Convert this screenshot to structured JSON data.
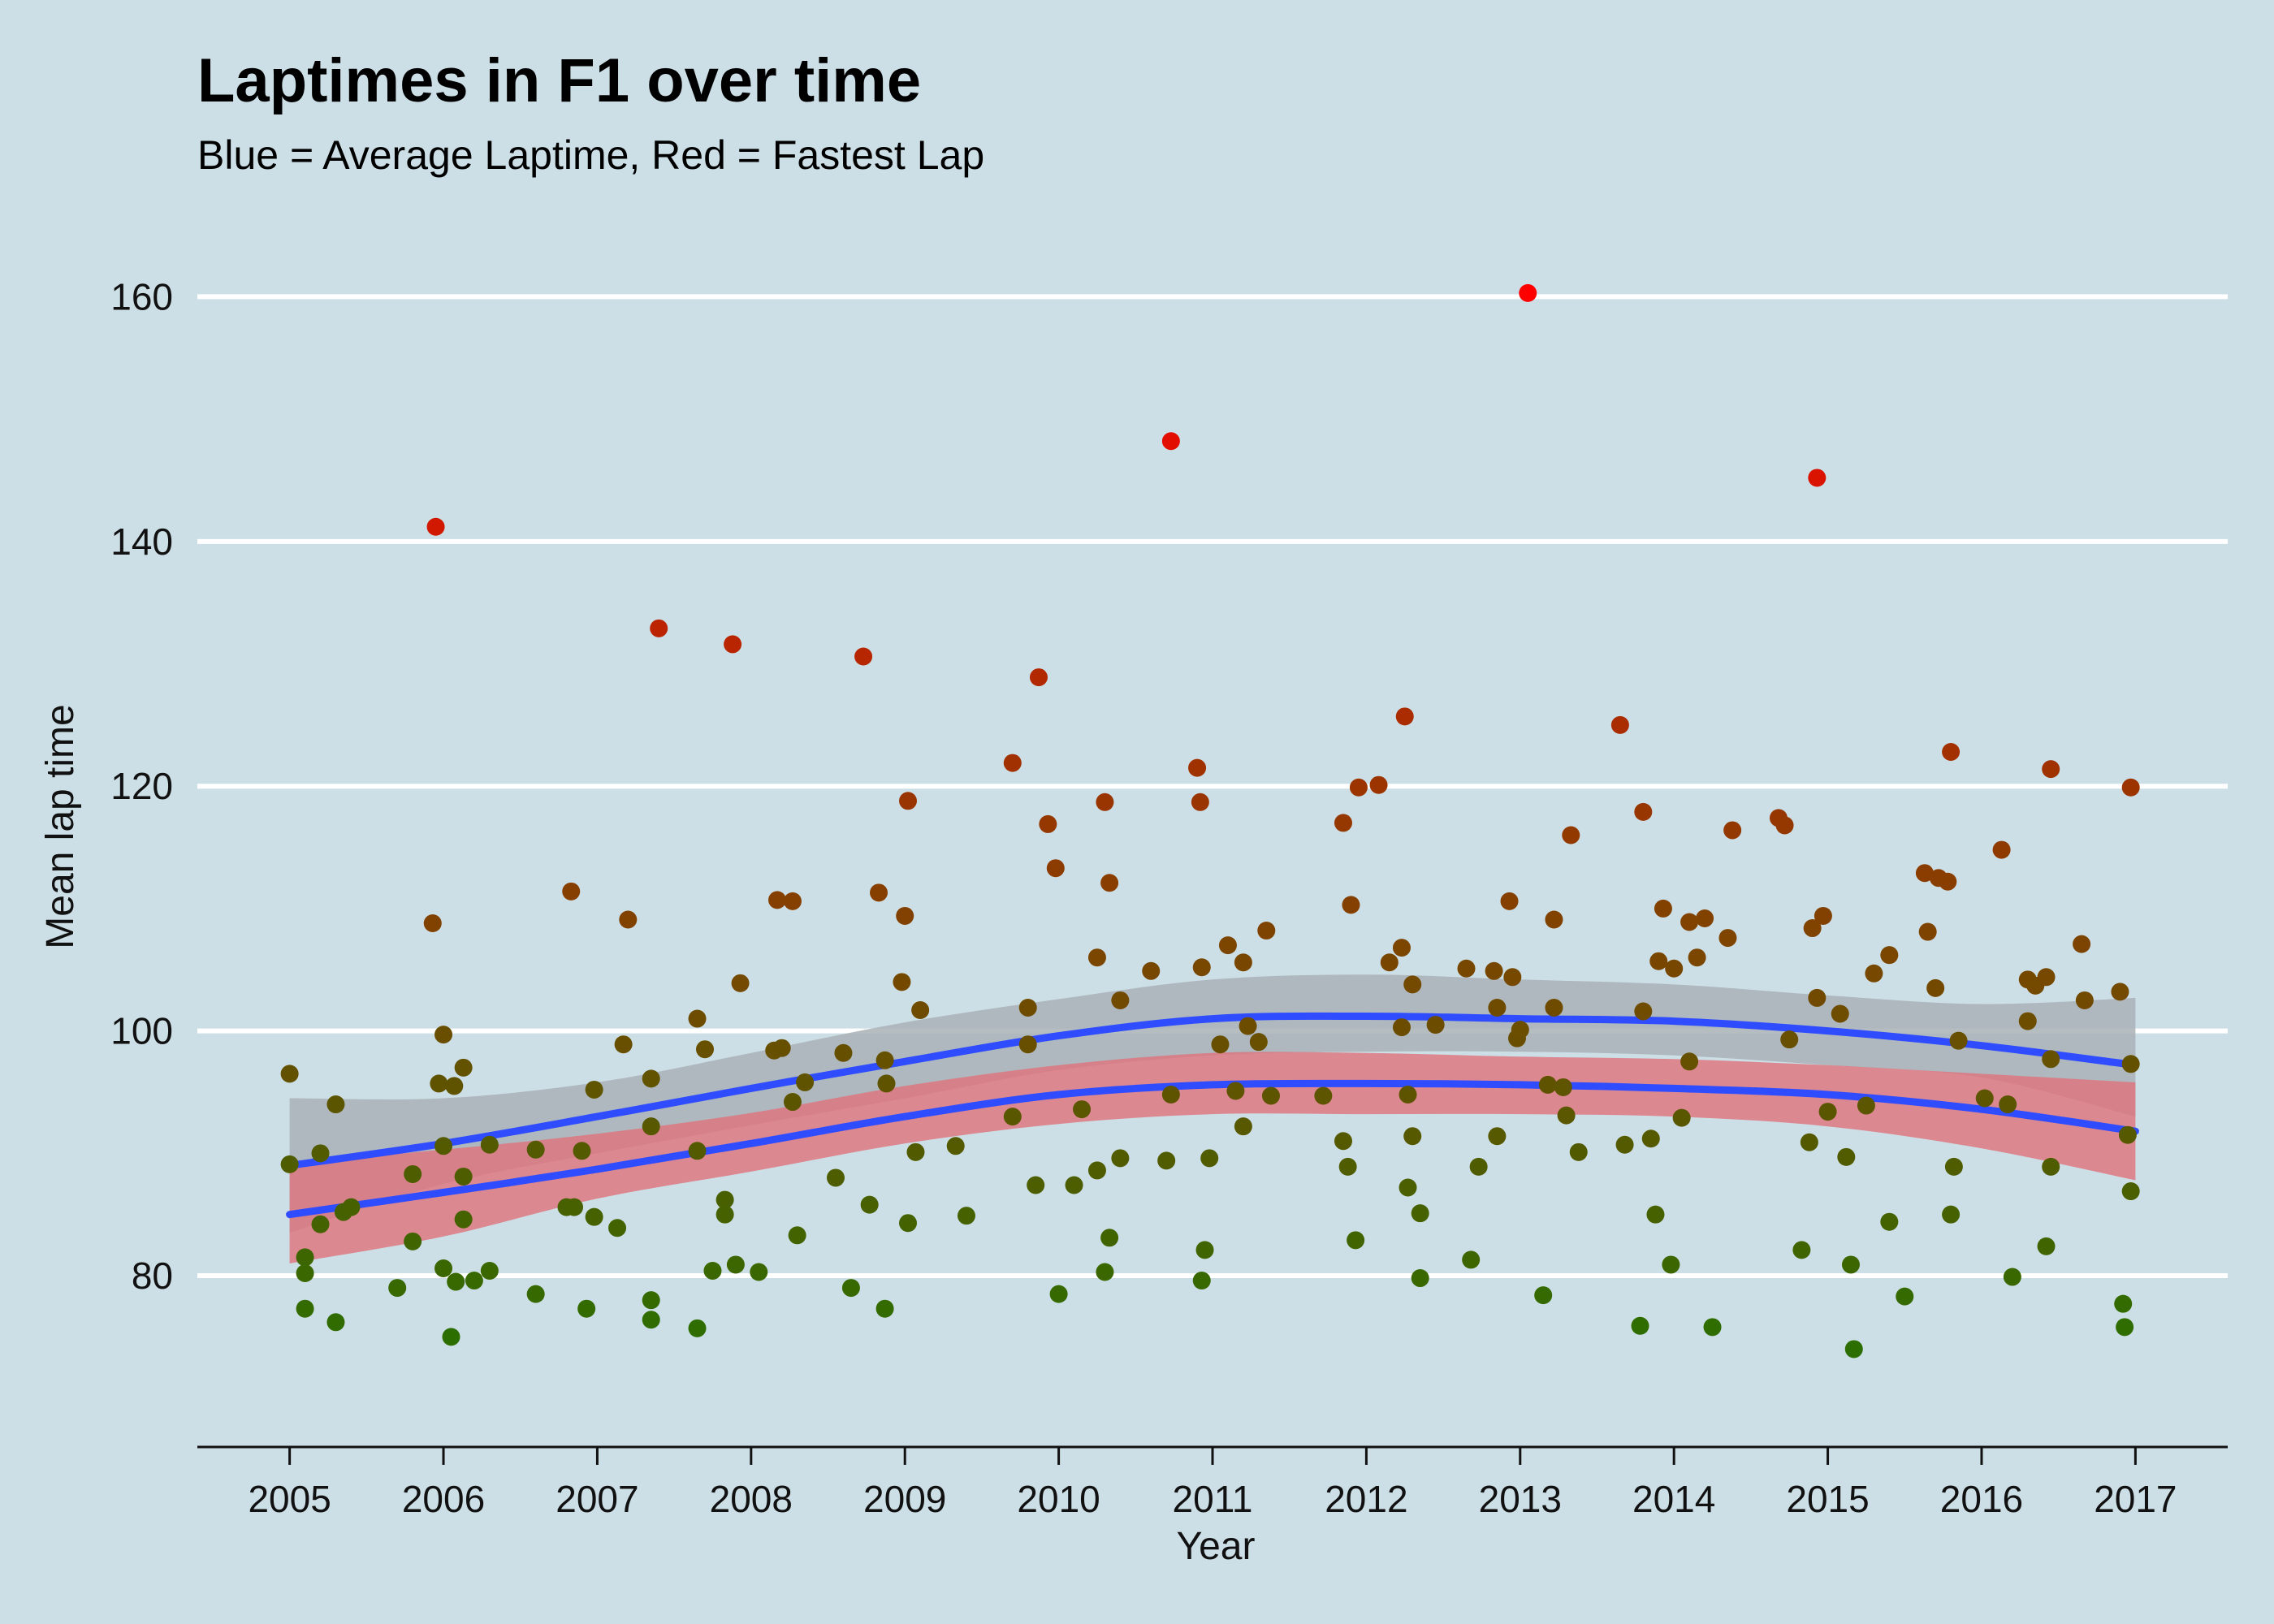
{
  "chart_data": {
    "type": "scatter",
    "title": "Laptimes in F1 over time",
    "subtitle": "Blue = Average Laptime, Red = Fastest Lap",
    "xlabel": "Year",
    "ylabel": "Mean lap time",
    "xlim": [
      2004.4,
      2017.6
    ],
    "ylim": [
      66,
      166
    ],
    "x_ticks": [
      "2005",
      "2006",
      "2007",
      "2008",
      "2009",
      "2010",
      "2011",
      "2012",
      "2013",
      "2014",
      "2015",
      "2016",
      "2017"
    ],
    "y_ticks": [
      "80",
      "100",
      "120",
      "140",
      "160"
    ],
    "grid": "horizontal major gridlines",
    "colors": {
      "background": "#cddfe6",
      "grid": "#ffffff",
      "smooth_line": "#2f4dff",
      "band_average": "#a9b1b6",
      "band_fastest": "#e0727c"
    },
    "points": [
      [
        2005.0,
        96.5
      ],
      [
        2005.0,
        89.1
      ],
      [
        2005.1,
        81.5
      ],
      [
        2005.1,
        77.3
      ],
      [
        2005.1,
        80.2
      ],
      [
        2005.2,
        84.2
      ],
      [
        2005.2,
        90.0
      ],
      [
        2005.3,
        94.0
      ],
      [
        2005.3,
        76.2
      ],
      [
        2005.35,
        85.2
      ],
      [
        2005.4,
        85.6
      ],
      [
        2005.7,
        79.0
      ],
      [
        2005.8,
        88.3
      ],
      [
        2005.8,
        82.8
      ],
      [
        2005.95,
        141.2
      ],
      [
        2005.93,
        108.8
      ],
      [
        2005.97,
        95.7
      ],
      [
        2006.0,
        90.6
      ],
      [
        2006.0,
        99.7
      ],
      [
        2006.0,
        80.6
      ],
      [
        2006.05,
        75.0
      ],
      [
        2006.07,
        95.5
      ],
      [
        2006.08,
        79.5
      ],
      [
        2006.13,
        97.0
      ],
      [
        2006.13,
        88.1
      ],
      [
        2006.13,
        84.6
      ],
      [
        2006.2,
        79.6
      ],
      [
        2006.3,
        90.7
      ],
      [
        2006.3,
        80.4
      ],
      [
        2006.6,
        90.3
      ],
      [
        2006.6,
        78.5
      ],
      [
        2006.8,
        85.6
      ],
      [
        2006.83,
        111.4
      ],
      [
        2006.85,
        85.6
      ],
      [
        2006.9,
        90.2
      ],
      [
        2006.93,
        77.3
      ],
      [
        2006.98,
        95.2
      ],
      [
        2006.98,
        84.8
      ],
      [
        2007.13,
        83.9
      ],
      [
        2007.17,
        98.9
      ],
      [
        2007.2,
        109.1
      ],
      [
        2007.35,
        96.1
      ],
      [
        2007.35,
        92.2
      ],
      [
        2007.35,
        78.0
      ],
      [
        2007.35,
        76.4
      ],
      [
        2007.4,
        132.9
      ],
      [
        2007.65,
        101.0
      ],
      [
        2007.65,
        90.2
      ],
      [
        2007.65,
        75.7
      ],
      [
        2007.7,
        98.5
      ],
      [
        2007.75,
        80.4
      ],
      [
        2007.83,
        86.2
      ],
      [
        2007.83,
        85.0
      ],
      [
        2007.88,
        131.6
      ],
      [
        2007.9,
        80.9
      ],
      [
        2007.93,
        103.9
      ],
      [
        2008.05,
        80.3
      ],
      [
        2008.15,
        98.4
      ],
      [
        2008.17,
        110.7
      ],
      [
        2008.2,
        98.6
      ],
      [
        2008.27,
        110.6
      ],
      [
        2008.27,
        94.2
      ],
      [
        2008.3,
        83.3
      ],
      [
        2008.35,
        95.8
      ],
      [
        2008.55,
        88.0
      ],
      [
        2008.6,
        98.2
      ],
      [
        2008.65,
        79.0
      ],
      [
        2008.73,
        130.6
      ],
      [
        2008.77,
        85.8
      ],
      [
        2008.83,
        111.3
      ],
      [
        2008.87,
        97.6
      ],
      [
        2008.87,
        77.3
      ],
      [
        2008.88,
        95.7
      ],
      [
        2008.98,
        104.0
      ],
      [
        2009.0,
        109.4
      ],
      [
        2009.02,
        118.8
      ],
      [
        2009.02,
        84.3
      ],
      [
        2009.07,
        90.1
      ],
      [
        2009.1,
        101.7
      ],
      [
        2009.33,
        90.6
      ],
      [
        2009.4,
        84.9
      ],
      [
        2009.7,
        121.9
      ],
      [
        2009.7,
        93.0
      ],
      [
        2009.8,
        98.9
      ],
      [
        2009.8,
        101.9
      ],
      [
        2009.85,
        87.4
      ],
      [
        2009.87,
        128.9
      ],
      [
        2009.93,
        116.9
      ],
      [
        2009.98,
        113.3
      ],
      [
        2010.0,
        78.5
      ],
      [
        2010.1,
        87.4
      ],
      [
        2010.15,
        93.6
      ],
      [
        2010.25,
        88.6
      ],
      [
        2010.25,
        106.0
      ],
      [
        2010.3,
        118.7
      ],
      [
        2010.3,
        80.3
      ],
      [
        2010.33,
        112.1
      ],
      [
        2010.33,
        83.1
      ],
      [
        2010.4,
        102.5
      ],
      [
        2010.4,
        89.6
      ],
      [
        2010.6,
        104.9
      ],
      [
        2010.7,
        89.4
      ],
      [
        2010.73,
        148.2
      ],
      [
        2010.73,
        94.8
      ],
      [
        2010.9,
        121.5
      ],
      [
        2010.92,
        118.7
      ],
      [
        2010.93,
        105.2
      ],
      [
        2010.93,
        79.6
      ],
      [
        2010.95,
        82.1
      ],
      [
        2010.98,
        89.6
      ],
      [
        2011.05,
        98.9
      ],
      [
        2011.1,
        107.0
      ],
      [
        2011.15,
        95.1
      ],
      [
        2011.2,
        105.6
      ],
      [
        2011.2,
        92.2
      ],
      [
        2011.23,
        100.4
      ],
      [
        2011.3,
        99.1
      ],
      [
        2011.35,
        108.2
      ],
      [
        2011.38,
        94.7
      ],
      [
        2011.72,
        94.7
      ],
      [
        2011.85,
        117.0
      ],
      [
        2011.85,
        91.0
      ],
      [
        2011.88,
        88.9
      ],
      [
        2011.9,
        110.3
      ],
      [
        2011.93,
        82.9
      ],
      [
        2011.95,
        119.9
      ],
      [
        2012.08,
        120.1
      ],
      [
        2012.15,
        105.6
      ],
      [
        2012.23,
        106.8
      ],
      [
        2012.23,
        100.3
      ],
      [
        2012.25,
        125.7
      ],
      [
        2012.27,
        94.8
      ],
      [
        2012.27,
        87.2
      ],
      [
        2012.3,
        91.4
      ],
      [
        2012.3,
        103.8
      ],
      [
        2012.35,
        85.1
      ],
      [
        2012.35,
        79.8
      ],
      [
        2012.45,
        100.5
      ],
      [
        2012.65,
        105.1
      ],
      [
        2012.68,
        81.3
      ],
      [
        2012.73,
        88.9
      ],
      [
        2012.83,
        104.9
      ],
      [
        2012.85,
        101.9
      ],
      [
        2012.85,
        91.4
      ],
      [
        2012.93,
        110.6
      ],
      [
        2012.95,
        104.4
      ],
      [
        2012.98,
        99.4
      ],
      [
        2013.0,
        100.1
      ],
      [
        2013.05,
        160.3
      ],
      [
        2013.15,
        78.4
      ],
      [
        2013.18,
        95.6
      ],
      [
        2013.22,
        109.1
      ],
      [
        2013.22,
        101.9
      ],
      [
        2013.28,
        95.4
      ],
      [
        2013.3,
        93.1
      ],
      [
        2013.33,
        116.0
      ],
      [
        2013.38,
        90.1
      ],
      [
        2013.65,
        125.0
      ],
      [
        2013.68,
        90.7
      ],
      [
        2013.78,
        75.9
      ],
      [
        2013.8,
        101.6
      ],
      [
        2013.8,
        117.9
      ],
      [
        2013.85,
        91.2
      ],
      [
        2013.88,
        85.0
      ],
      [
        2013.9,
        105.7
      ],
      [
        2013.93,
        110.0
      ],
      [
        2013.98,
        80.9
      ],
      [
        2014.0,
        105.1
      ],
      [
        2014.05,
        92.9
      ],
      [
        2014.1,
        108.9
      ],
      [
        2014.1,
        97.5
      ],
      [
        2014.15,
        106.0
      ],
      [
        2014.2,
        109.2
      ],
      [
        2014.25,
        75.8
      ],
      [
        2014.35,
        107.6
      ],
      [
        2014.38,
        116.4
      ],
      [
        2014.68,
        117.4
      ],
      [
        2014.72,
        116.8
      ],
      [
        2014.75,
        99.3
      ],
      [
        2014.83,
        82.1
      ],
      [
        2014.88,
        90.9
      ],
      [
        2014.9,
        108.4
      ],
      [
        2014.93,
        102.7
      ],
      [
        2014.93,
        145.2
      ],
      [
        2014.97,
        109.4
      ],
      [
        2015.0,
        93.4
      ],
      [
        2015.08,
        101.4
      ],
      [
        2015.12,
        89.7
      ],
      [
        2015.15,
        80.9
      ],
      [
        2015.17,
        74.0
      ],
      [
        2015.25,
        93.9
      ],
      [
        2015.3,
        104.7
      ],
      [
        2015.4,
        106.2
      ],
      [
        2015.4,
        84.4
      ],
      [
        2015.5,
        78.3
      ],
      [
        2015.63,
        112.9
      ],
      [
        2015.65,
        108.1
      ],
      [
        2015.7,
        103.5
      ],
      [
        2015.72,
        112.5
      ],
      [
        2015.78,
        112.2
      ],
      [
        2015.8,
        122.8
      ],
      [
        2015.8,
        85.0
      ],
      [
        2015.82,
        88.9
      ],
      [
        2015.85,
        99.2
      ],
      [
        2016.02,
        94.5
      ],
      [
        2016.13,
        114.8
      ],
      [
        2016.17,
        94.0
      ],
      [
        2016.2,
        79.9
      ],
      [
        2016.3,
        104.2
      ],
      [
        2016.3,
        100.8
      ],
      [
        2016.35,
        103.7
      ],
      [
        2016.42,
        104.4
      ],
      [
        2016.42,
        82.4
      ],
      [
        2016.45,
        121.4
      ],
      [
        2016.45,
        97.7
      ],
      [
        2016.45,
        88.9
      ],
      [
        2016.65,
        107.1
      ],
      [
        2016.67,
        102.5
      ],
      [
        2016.9,
        103.2
      ],
      [
        2016.92,
        77.7
      ],
      [
        2016.93,
        75.8
      ],
      [
        2016.95,
        91.5
      ],
      [
        2016.97,
        119.9
      ],
      [
        2016.97,
        97.3
      ],
      [
        2016.97,
        86.9
      ]
    ],
    "series": [
      {
        "x": [
          2005,
          2006,
          2007,
          2008,
          2009,
          2010,
          2011,
          2012,
          2013,
          2014,
          2015,
          2016,
          2017
        ],
        "values": [
          89.0,
          90.8,
          93.0,
          95.3,
          97.5,
          99.6,
          101.0,
          101.2,
          101.0,
          100.8,
          100.0,
          98.8,
          97.2
        ],
        "ci_low": [
          83.5,
          87.5,
          90.0,
          92.3,
          94.5,
          96.8,
          98.0,
          98.3,
          98.3,
          98.0,
          97.2,
          96.2,
          93.0
        ],
        "ci_high": [
          94.5,
          94.5,
          95.8,
          98.2,
          100.7,
          102.6,
          104.2,
          104.6,
          104.2,
          103.8,
          102.9,
          102.2,
          102.7
        ]
      },
      {
        "x": [
          2005,
          2006,
          2007,
          2008,
          2009,
          2010,
          2011,
          2012,
          2013,
          2014,
          2015,
          2016,
          2017
        ],
        "values": [
          85.0,
          86.8,
          88.7,
          90.8,
          93.0,
          94.8,
          95.6,
          95.7,
          95.6,
          95.3,
          94.8,
          93.6,
          91.8
        ],
        "ci_low": [
          81.0,
          83.2,
          86.3,
          88.5,
          90.8,
          92.4,
          93.2,
          93.2,
          93.2,
          93.0,
          92.2,
          90.4,
          87.8
        ],
        "ci_high": [
          89.2,
          90.3,
          91.6,
          93.3,
          95.5,
          97.2,
          98.2,
          98.2,
          97.9,
          97.7,
          97.2,
          96.5,
          95.8
        ]
      }
    ]
  }
}
